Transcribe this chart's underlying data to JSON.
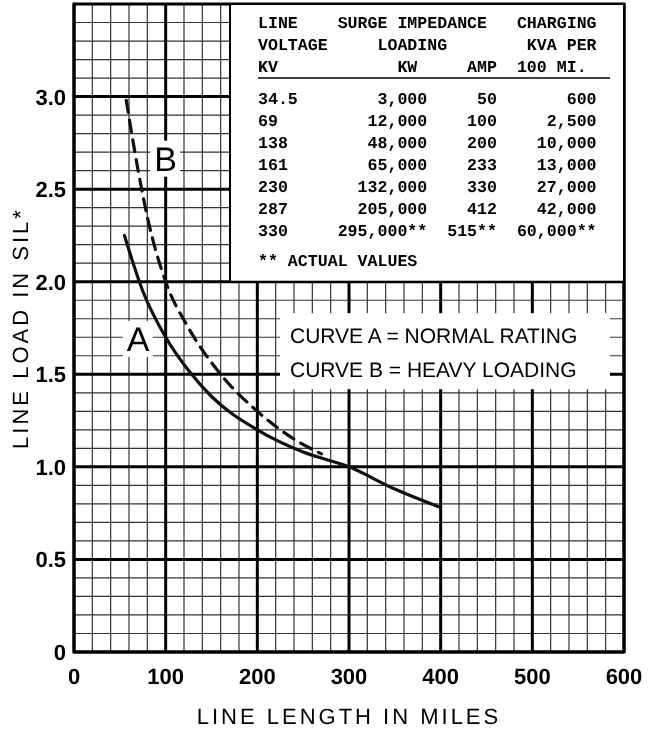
{
  "chart_data": {
    "type": "line",
    "xlabel": "LINE LENGTH IN MILES",
    "ylabel": "LINE LOAD IN SIL*",
    "xlim": [
      0,
      600
    ],
    "ylim": [
      0,
      3.5
    ],
    "xticks": [
      0,
      100,
      200,
      300,
      400,
      500,
      600
    ],
    "yticks": [
      {
        "value": 0,
        "label": "0"
      },
      {
        "value": 0.5,
        "label": "0.5"
      },
      {
        "value": 1,
        "label": "1.0"
      },
      {
        "value": 1.5,
        "label": "1.5"
      },
      {
        "value": 2,
        "label": "2.0"
      },
      {
        "value": 2.5,
        "label": "2.5"
      },
      {
        "value": 3,
        "label": "3.0"
      }
    ],
    "grid": true,
    "marker": "none",
    "series": [
      {
        "name": "A",
        "color": "#111111",
        "line_style": "solid",
        "x": [
          55,
          75,
          100,
          125,
          150,
          200,
          250,
          300,
          350,
          400
        ],
        "values": [
          2.25,
          1.95,
          1.7,
          1.52,
          1.38,
          1.2,
          1.08,
          1.0,
          0.88,
          0.78
        ]
      },
      {
        "name": "B",
        "color": "#111111",
        "line_style": "dashed",
        "x": [
          57,
          70,
          80,
          100,
          125,
          160,
          200,
          240,
          270
        ],
        "values": [
          2.98,
          2.6,
          2.35,
          2.0,
          1.75,
          1.5,
          1.3,
          1.15,
          1.07
        ]
      }
    ],
    "annotations": [
      "LINE    SURGE IMPEDANCE   CHARGING",
      "VOLTAGE     LOADING        KVA PER",
      "KV            KW     AMP  100 MI.",
      "34.5        3,000     50       600",
      "69         12,000    100     2,500",
      "138        48,000    200    10,000",
      "161        65,000    233    13,000",
      "230       132,000    330    27,000",
      "287       205,000    412    42,000",
      "330     295,000**  515**  60,000**",
      "** ACTUAL VALUES",
      "CURVE A = NORMAL RATING",
      "CURVE B = HEAVY LOADING"
    ]
  }
}
